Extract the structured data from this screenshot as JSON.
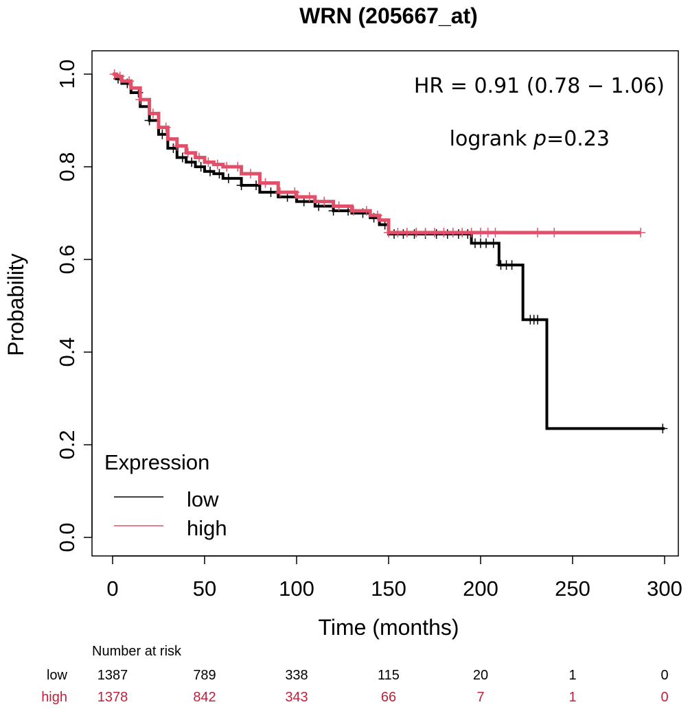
{
  "chart_data": {
    "type": "line",
    "title": "WRN (205667_at)",
    "xlabel": "Time (months)",
    "ylabel": "Probability",
    "xlim": [
      0,
      300
    ],
    "ylim": [
      0.0,
      1.0
    ],
    "x_ticks": [
      "0",
      "50",
      "100",
      "150",
      "200",
      "250",
      "300"
    ],
    "x_tick_values": [
      0,
      50,
      100,
      150,
      200,
      250,
      300
    ],
    "y_ticks": [
      "0.0",
      "0.2",
      "0.4",
      "0.6",
      "0.8",
      "1.0"
    ],
    "y_tick_values": [
      0.0,
      0.2,
      0.4,
      0.6,
      0.8,
      1.0
    ],
    "annotations": {
      "hr": "HR = 0.91 (0.78 − 1.06)",
      "logrank_prefix": "logrank ",
      "logrank_p": "p",
      "logrank_value": "=0.23"
    },
    "legend": {
      "title": "Expression",
      "position": "bottom-left",
      "entries": [
        {
          "label": "low",
          "color": "#000000"
        },
        {
          "label": "high",
          "color": "#e05068"
        }
      ]
    },
    "series": [
      {
        "name": "low",
        "color": "#000000",
        "x": [
          0,
          2,
          5,
          10,
          15,
          20,
          25,
          30,
          35,
          40,
          45,
          50,
          55,
          60,
          70,
          80,
          90,
          100,
          110,
          120,
          130,
          140,
          145,
          150,
          160,
          170,
          180,
          190,
          195,
          205,
          210,
          215,
          220,
          223,
          228,
          232,
          236,
          250,
          270,
          300
        ],
        "y": [
          1.0,
          0.99,
          0.98,
          0.96,
          0.93,
          0.9,
          0.87,
          0.84,
          0.82,
          0.81,
          0.8,
          0.79,
          0.785,
          0.775,
          0.76,
          0.745,
          0.735,
          0.725,
          0.715,
          0.705,
          0.7,
          0.69,
          0.675,
          0.655,
          0.655,
          0.655,
          0.655,
          0.655,
          0.635,
          0.635,
          0.588,
          0.588,
          0.588,
          0.47,
          0.47,
          0.47,
          0.235,
          0.235,
          0.235,
          0.235
        ],
        "censor_x": [
          3,
          8,
          14,
          20,
          27,
          33,
          38,
          43,
          48,
          53,
          58,
          63,
          70,
          78,
          86,
          95,
          104,
          112,
          120,
          128,
          136,
          142,
          148,
          153,
          158,
          164,
          170,
          176,
          182,
          188,
          193,
          197,
          200,
          203,
          207,
          211,
          214,
          217,
          227,
          229,
          231,
          299
        ]
      },
      {
        "name": "high",
        "color": "#e05068",
        "x": [
          0,
          2,
          5,
          10,
          15,
          20,
          25,
          30,
          35,
          40,
          45,
          50,
          55,
          60,
          70,
          80,
          90,
          100,
          110,
          120,
          130,
          140,
          145,
          150,
          160,
          200,
          240,
          287
        ],
        "y": [
          1.0,
          0.995,
          0.985,
          0.97,
          0.945,
          0.915,
          0.885,
          0.86,
          0.845,
          0.83,
          0.82,
          0.81,
          0.805,
          0.8,
          0.785,
          0.765,
          0.745,
          0.735,
          0.725,
          0.715,
          0.705,
          0.695,
          0.685,
          0.658,
          0.658,
          0.658,
          0.658,
          0.658
        ],
        "censor_x": [
          1,
          4,
          9,
          15,
          22,
          29,
          35,
          41,
          47,
          52,
          57,
          62,
          68,
          75,
          83,
          91,
          99,
          107,
          115,
          123,
          131,
          138,
          144,
          150,
          155,
          160,
          165,
          170,
          175,
          180,
          185,
          190,
          195,
          200,
          204,
          208,
          231,
          240,
          287
        ]
      }
    ],
    "risk_table": {
      "header": "Number at risk",
      "times": [
        0,
        50,
        100,
        150,
        200,
        250,
        300
      ],
      "rows": [
        {
          "name": "low",
          "color": "#000000",
          "values": [
            "1387",
            "789",
            "338",
            "115",
            "20",
            "1",
            "0"
          ]
        },
        {
          "name": "high",
          "color": "#c0203a",
          "values": [
            "1378",
            "842",
            "343",
            "66",
            "7",
            "1",
            "0"
          ]
        }
      ]
    }
  }
}
